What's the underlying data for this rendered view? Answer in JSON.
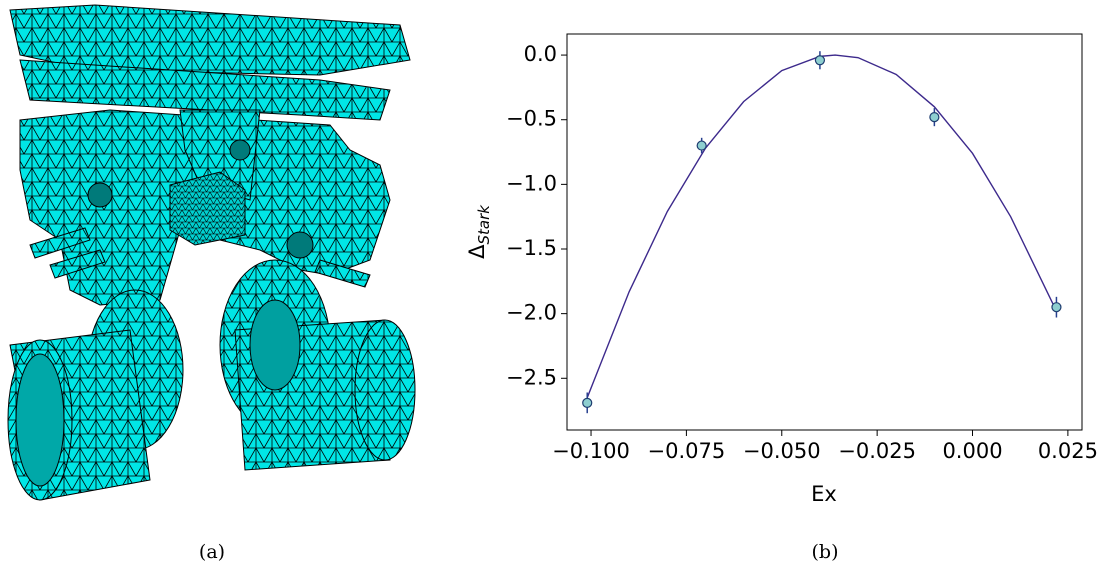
{
  "chart_data": {
    "type": "scatter",
    "xlabel": "Ex",
    "ylabel": {
      "symbol": "Δ",
      "subscript": "Stark"
    },
    "x": [
      -0.101,
      -0.071,
      -0.04,
      -0.01,
      0.022
    ],
    "series": [
      {
        "color": "#8ecfd0",
        "edgecolor": "#1f3d70",
        "errcolor": "#27408f",
        "values": [
          -2.69,
          -0.7,
          -0.04,
          -0.48,
          -1.95
        ],
        "errors": [
          0.08,
          0.06,
          0.07,
          0.07,
          0.08
        ]
      },
      {
        "type": "line",
        "color": "#3d2a8c",
        "x": [
          -0.101,
          -0.09,
          -0.08,
          -0.07,
          -0.06,
          -0.05,
          -0.04,
          -0.036,
          -0.03,
          -0.02,
          -0.01,
          0,
          0.01,
          0.022
        ],
        "values": [
          -2.65,
          -1.83,
          -1.21,
          -0.72,
          -0.36,
          -0.12,
          -0.01,
          0,
          -0.02,
          -0.15,
          -0.4,
          -0.76,
          -1.25,
          -1.98
        ]
      }
    ],
    "xlim": [
      -0.1063,
      0.0287
    ],
    "ylim": [
      -2.9,
      0.163
    ],
    "xticks": [
      {
        "value": -0.1,
        "label": "−0.100"
      },
      {
        "value": -0.075,
        "label": "−0.075"
      },
      {
        "value": -0.05,
        "label": "−0.050"
      },
      {
        "value": -0.025,
        "label": "−0.025"
      },
      {
        "value": 0,
        "label": "0.000"
      },
      {
        "value": 0.025,
        "label": "0.025"
      }
    ],
    "yticks": [
      {
        "value": 0,
        "label": "0.0"
      },
      {
        "value": -0.5,
        "label": "−0.5"
      },
      {
        "value": -1,
        "label": "−1.0"
      },
      {
        "value": -1.5,
        "label": "−1.5"
      },
      {
        "value": -2,
        "label": "−2.0"
      },
      {
        "value": -2.5,
        "label": "−2.5"
      }
    ]
  },
  "captions": [
    "(a)",
    "(b)"
  ]
}
